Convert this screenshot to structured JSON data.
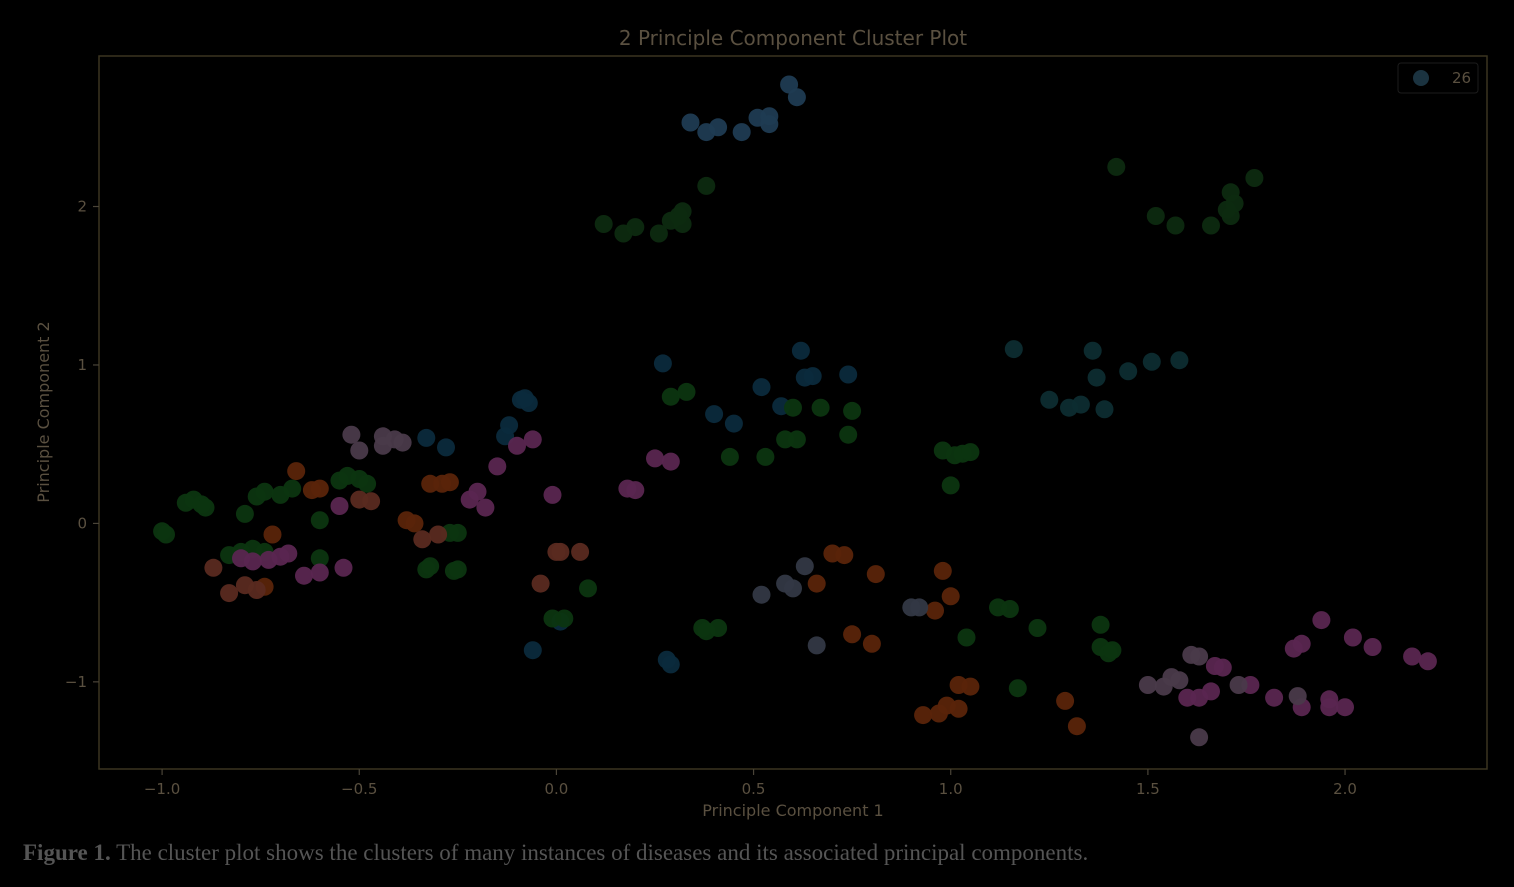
{
  "colors": {
    "background": "#000000",
    "plot_frame": "#3a3420",
    "text": "#5a5040",
    "tick": "#4a4438"
  },
  "caption": {
    "label": "Figure 1.",
    "text": " The cluster plot shows the clusters of many instances of diseases and its associated principal components."
  },
  "chart_data": {
    "type": "scatter",
    "title": "2 Principle Component Cluster Plot",
    "xlabel": "Principle Component 1",
    "ylabel": "Principle Component 2",
    "xlim": [
      -1.16,
      2.36
    ],
    "ylim": [
      -1.55,
      2.95
    ],
    "xticks": [
      -1.0,
      -0.5,
      0.0,
      0.5,
      1.0,
      1.5,
      2.0
    ],
    "xtick_labels": [
      "−1.0",
      "−0.5",
      "0.0",
      "0.5",
      "1.0",
      "1.5",
      "2.0"
    ],
    "yticks": [
      -1,
      0,
      1,
      2
    ],
    "ytick_labels": [
      "−1",
      "0",
      "1",
      "2"
    ],
    "grid": false,
    "legend": {
      "position": "top-right",
      "entries": [
        {
          "label": "26",
          "color": "#1b3340"
        }
      ]
    },
    "series": [
      {
        "color": "#1f3b52",
        "points": [
          [
            0.34,
            2.53
          ],
          [
            0.38,
            2.47
          ],
          [
            0.41,
            2.5
          ],
          [
            0.47,
            2.47
          ],
          [
            0.51,
            2.56
          ],
          [
            0.54,
            2.57
          ],
          [
            0.54,
            2.52
          ],
          [
            0.59,
            2.77
          ],
          [
            0.61,
            2.69
          ]
        ]
      },
      {
        "color": "#0d2a10",
        "points": [
          [
            0.12,
            1.89
          ],
          [
            0.17,
            1.83
          ],
          [
            0.2,
            1.87
          ],
          [
            0.26,
            1.83
          ],
          [
            0.29,
            1.91
          ],
          [
            0.31,
            1.94
          ],
          [
            0.32,
            1.89
          ],
          [
            0.32,
            1.97
          ],
          [
            0.38,
            2.13
          ],
          [
            1.42,
            2.25
          ],
          [
            1.52,
            1.94
          ],
          [
            1.57,
            1.88
          ],
          [
            1.66,
            1.88
          ],
          [
            1.7,
            1.98
          ],
          [
            1.71,
            1.94
          ],
          [
            1.71,
            2.09
          ],
          [
            1.72,
            2.02
          ],
          [
            1.77,
            2.18
          ]
        ]
      },
      {
        "color": "#0d2c30",
        "points": [
          [
            1.16,
            1.1
          ],
          [
            1.25,
            0.78
          ],
          [
            1.3,
            0.73
          ],
          [
            1.33,
            0.75
          ],
          [
            1.36,
            1.09
          ],
          [
            1.37,
            0.92
          ],
          [
            1.39,
            0.72
          ],
          [
            1.45,
            0.96
          ],
          [
            1.51,
            1.02
          ],
          [
            1.58,
            1.03
          ]
        ]
      },
      {
        "color": "#0b2a3c",
        "points": [
          [
            0.27,
            1.01
          ],
          [
            0.4,
            0.69
          ],
          [
            0.45,
            0.63
          ],
          [
            0.52,
            0.86
          ],
          [
            0.57,
            0.74
          ],
          [
            0.62,
            1.09
          ],
          [
            0.63,
            0.92
          ],
          [
            0.65,
            0.93
          ],
          [
            0.74,
            0.94
          ],
          [
            -0.33,
            0.54
          ],
          [
            -0.28,
            0.48
          ],
          [
            -0.13,
            0.55
          ],
          [
            -0.12,
            0.62
          ],
          [
            -0.09,
            0.78
          ],
          [
            -0.08,
            0.79
          ],
          [
            -0.07,
            0.76
          ],
          [
            0.01,
            -0.62
          ],
          [
            -0.06,
            -0.8
          ],
          [
            0.28,
            -0.86
          ],
          [
            0.29,
            -0.89
          ]
        ]
      },
      {
        "color": "#0c3510",
        "points": [
          [
            0.29,
            0.8
          ],
          [
            0.33,
            0.83
          ],
          [
            0.44,
            0.42
          ],
          [
            0.53,
            0.42
          ],
          [
            0.58,
            0.53
          ],
          [
            0.6,
            0.73
          ],
          [
            0.61,
            0.53
          ],
          [
            0.67,
            0.73
          ],
          [
            0.74,
            0.56
          ],
          [
            0.75,
            0.71
          ],
          [
            0.98,
            0.46
          ],
          [
            1.01,
            0.43
          ],
          [
            1.03,
            0.44
          ],
          [
            1.05,
            0.45
          ],
          [
            1.0,
            0.24
          ],
          [
            -0.01,
            -0.6
          ],
          [
            0.02,
            -0.6
          ],
          [
            0.08,
            -0.41
          ],
          [
            0.37,
            -0.66
          ],
          [
            0.38,
            -0.68
          ],
          [
            0.41,
            -0.66
          ],
          [
            1.04,
            -0.72
          ],
          [
            1.12,
            -0.53
          ],
          [
            1.15,
            -0.54
          ],
          [
            1.22,
            -0.66
          ],
          [
            1.17,
            -1.04
          ],
          [
            1.38,
            -0.64
          ],
          [
            1.38,
            -0.78
          ],
          [
            1.4,
            -0.82
          ],
          [
            1.41,
            -0.8
          ],
          [
            -1.0,
            -0.05
          ],
          [
            -0.99,
            -0.07
          ],
          [
            -0.94,
            0.13
          ],
          [
            -0.92,
            0.15
          ],
          [
            -0.9,
            0.12
          ],
          [
            -0.89,
            0.1
          ],
          [
            -0.79,
            0.06
          ],
          [
            -0.76,
            0.17
          ],
          [
            -0.74,
            0.2
          ],
          [
            -0.7,
            0.18
          ],
          [
            -0.67,
            0.22
          ],
          [
            -0.6,
            0.02
          ],
          [
            -0.6,
            -0.22
          ],
          [
            -0.55,
            0.27
          ],
          [
            -0.53,
            0.3
          ],
          [
            -0.5,
            0.28
          ],
          [
            -0.48,
            0.25
          ],
          [
            -0.33,
            -0.29
          ],
          [
            -0.32,
            -0.27
          ],
          [
            -0.27,
            -0.06
          ],
          [
            -0.26,
            -0.3
          ],
          [
            -0.25,
            -0.29
          ],
          [
            -0.25,
            -0.06
          ],
          [
            -0.83,
            -0.2
          ],
          [
            -0.8,
            -0.18
          ],
          [
            -0.77,
            -0.16
          ],
          [
            -0.74,
            -0.18
          ]
        ]
      },
      {
        "color": "#5a2409",
        "points": [
          [
            -0.66,
            0.33
          ],
          [
            -0.62,
            0.21
          ],
          [
            -0.6,
            0.22
          ],
          [
            -0.72,
            -0.07
          ],
          [
            -0.74,
            -0.4
          ],
          [
            -0.38,
            0.02
          ],
          [
            -0.36,
            0.0
          ],
          [
            -0.32,
            0.25
          ],
          [
            -0.29,
            0.25
          ],
          [
            -0.27,
            0.26
          ],
          [
            0.7,
            -0.19
          ],
          [
            0.73,
            -0.2
          ],
          [
            0.66,
            -0.38
          ],
          [
            0.81,
            -0.32
          ],
          [
            0.75,
            -0.7
          ],
          [
            0.8,
            -0.76
          ],
          [
            0.96,
            -0.55
          ],
          [
            0.98,
            -0.3
          ],
          [
            1.0,
            -0.46
          ],
          [
            0.93,
            -1.21
          ],
          [
            0.97,
            -1.2
          ],
          [
            0.99,
            -1.15
          ],
          [
            1.02,
            -1.17
          ],
          [
            1.02,
            -1.02
          ],
          [
            1.05,
            -1.03
          ],
          [
            1.29,
            -1.12
          ],
          [
            1.32,
            -1.28
          ]
        ]
      },
      {
        "color": "#5a2a20",
        "points": [
          [
            -0.87,
            -0.28
          ],
          [
            -0.83,
            -0.44
          ],
          [
            -0.79,
            -0.39
          ],
          [
            -0.76,
            -0.42
          ],
          [
            -0.5,
            0.15
          ],
          [
            -0.47,
            0.14
          ],
          [
            -0.34,
            -0.1
          ],
          [
            -0.3,
            -0.07
          ],
          [
            -0.04,
            -0.38
          ],
          [
            0.0,
            -0.18
          ],
          [
            0.01,
            -0.18
          ],
          [
            0.06,
            -0.18
          ]
        ]
      },
      {
        "color": "#5a2650",
        "points": [
          [
            -0.8,
            -0.22
          ],
          [
            -0.77,
            -0.24
          ],
          [
            -0.73,
            -0.23
          ],
          [
            -0.7,
            -0.21
          ],
          [
            -0.68,
            -0.19
          ],
          [
            -0.64,
            -0.33
          ],
          [
            -0.6,
            -0.31
          ],
          [
            -0.54,
            -0.28
          ],
          [
            -0.55,
            0.11
          ],
          [
            -0.2,
            0.2
          ],
          [
            -0.18,
            0.1
          ],
          [
            -0.22,
            0.15
          ],
          [
            -0.15,
            0.36
          ],
          [
            -0.1,
            0.49
          ],
          [
            -0.06,
            0.53
          ],
          [
            -0.01,
            0.18
          ],
          [
            0.18,
            0.22
          ],
          [
            0.2,
            0.21
          ],
          [
            0.25,
            0.41
          ],
          [
            0.29,
            0.39
          ],
          [
            1.6,
            -1.1
          ],
          [
            1.63,
            -1.1
          ],
          [
            1.66,
            -1.06
          ],
          [
            1.67,
            -0.9
          ],
          [
            1.69,
            -0.91
          ],
          [
            1.76,
            -1.02
          ],
          [
            1.82,
            -1.1
          ],
          [
            1.87,
            -0.79
          ],
          [
            1.89,
            -0.76
          ],
          [
            1.89,
            -1.16
          ],
          [
            1.94,
            -0.61
          ],
          [
            1.96,
            -1.11
          ],
          [
            1.96,
            -1.16
          ],
          [
            2.0,
            -1.16
          ],
          [
            2.02,
            -0.72
          ],
          [
            2.07,
            -0.78
          ],
          [
            2.17,
            -0.84
          ],
          [
            2.21,
            -0.87
          ]
        ]
      },
      {
        "color": "#4a3a4a",
        "points": [
          [
            -0.52,
            0.56
          ],
          [
            -0.5,
            0.46
          ],
          [
            -0.44,
            0.55
          ],
          [
            -0.44,
            0.49
          ],
          [
            -0.41,
            0.53
          ],
          [
            -0.39,
            0.51
          ],
          [
            1.5,
            -1.02
          ],
          [
            1.54,
            -1.03
          ],
          [
            1.56,
            -0.97
          ],
          [
            1.58,
            -0.99
          ],
          [
            1.61,
            -0.83
          ],
          [
            1.63,
            -0.84
          ],
          [
            1.63,
            -1.35
          ],
          [
            1.73,
            -1.02
          ],
          [
            1.88,
            -1.09
          ]
        ]
      },
      {
        "color": "#333845",
        "points": [
          [
            0.52,
            -0.45
          ],
          [
            0.58,
            -0.38
          ],
          [
            0.6,
            -0.41
          ],
          [
            0.63,
            -0.27
          ],
          [
            0.66,
            -0.77
          ],
          [
            0.9,
            -0.53
          ],
          [
            0.92,
            -0.53
          ]
        ]
      }
    ]
  }
}
